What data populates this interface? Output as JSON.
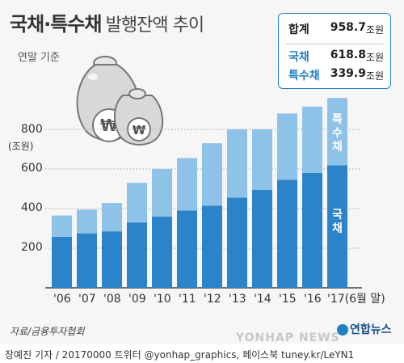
{
  "title": {
    "bold": "국채·특수채",
    "rest": "발행잔액 추이"
  },
  "subtitle": "연말 기준",
  "unit": "(조원)",
  "summary": {
    "total_label": "합계",
    "total_value": "958.7",
    "total_unit": "조원",
    "gov_label": "국채",
    "gov_value": "618.8",
    "gov_unit": "조원",
    "special_label": "특수채",
    "special_value": "339.9",
    "special_unit": "조원"
  },
  "colors": {
    "gov": "#2b84c9",
    "special": "#8fc2e8",
    "accent": "#1f7fc6",
    "text": "#333333"
  },
  "icons": [
    "money-bags-won-icon"
  ],
  "chart_data": {
    "type": "bar",
    "stacked": true,
    "categories": [
      "'06",
      "'07",
      "'08",
      "'09",
      "'10",
      "'11",
      "'12",
      "'13",
      "'14",
      "'15",
      "'16",
      "'17(6월 말)"
    ],
    "series": [
      {
        "name": "국채",
        "values": [
          258,
          275,
          285,
          330,
          360,
          390,
          415,
          455,
          495,
          545,
          580,
          618.8
        ]
      },
      {
        "name": "특수채",
        "values": [
          107,
          120,
          143,
          200,
          240,
          265,
          315,
          345,
          305,
          335,
          335,
          339.9
        ]
      }
    ],
    "series_labels": [
      "국채",
      "특수채"
    ],
    "yticks": [
      "200",
      "400",
      "600",
      "800"
    ],
    "ylim": [
      0,
      1000
    ],
    "grid": true
  },
  "source": "자료/금융투자협회",
  "logo": "연합뉴스",
  "watermark": "YONHAP NEWS",
  "byline": "장예진 기자 / 20170000 트위터 @yonhap_graphics, 페이스북 tuney.kr/LeYN1"
}
